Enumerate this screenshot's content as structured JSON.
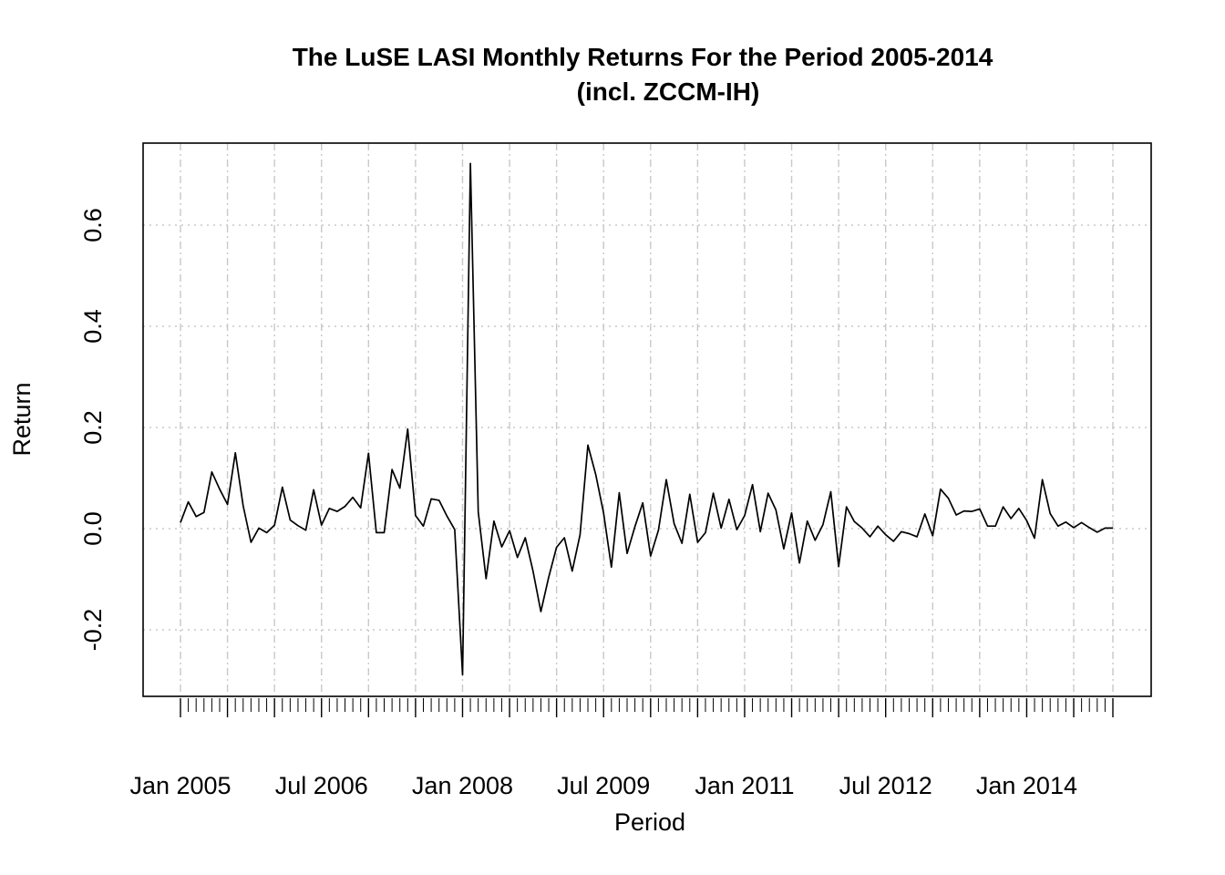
{
  "chart_data": {
    "type": "line",
    "title": "The LuSE LASI Monthly Returns For the Period 2005-2014",
    "subtitle": "(incl. ZCCM-IH)",
    "xlabel": "Period",
    "ylabel": "Return",
    "x_tick_labels": [
      "Jan 2005",
      "Jul 2006",
      "Jan 2008",
      "Jul 2009",
      "Jan 2011",
      "Jul 2012",
      "Jan 2014"
    ],
    "y_ticks": [
      -0.2,
      0.0,
      0.2,
      0.4,
      0.6
    ],
    "y_tick_labels": [
      "-0.2",
      "0.0",
      "0.2",
      "0.4",
      "0.6"
    ],
    "ylim": [
      -0.29,
      0.72
    ],
    "xlim": [
      "2005-01",
      "2014-12"
    ],
    "grid": true,
    "x_start": "2005-01",
    "frequency": "monthly",
    "series": [
      {
        "values": [
          0.012,
          0.053,
          0.024,
          0.032,
          0.112,
          0.078,
          0.048,
          0.15,
          0.045,
          -0.027,
          0.001,
          -0.008,
          0.007,
          0.082,
          0.017,
          0.006,
          -0.003,
          0.077,
          0.007,
          0.04,
          0.034,
          0.044,
          0.062,
          0.041,
          0.149,
          -0.008,
          -0.008,
          0.117,
          0.08,
          0.197,
          0.026,
          0.005,
          0.059,
          0.056,
          0.025,
          -0.002,
          -0.289,
          0.722,
          0.033,
          -0.099,
          0.015,
          -0.036,
          -0.004,
          -0.057,
          -0.018,
          -0.084,
          -0.164,
          -0.096,
          -0.037,
          -0.018,
          -0.084,
          -0.012,
          0.165,
          0.107,
          0.031,
          -0.076,
          0.071,
          -0.049,
          0.004,
          0.051,
          -0.054,
          -0.003,
          0.097,
          0.01,
          -0.029,
          0.068,
          -0.027,
          -0.008,
          0.07,
          0.001,
          0.058,
          -0.002,
          0.026,
          0.087,
          -0.006,
          0.07,
          0.037,
          -0.04,
          0.031,
          -0.068,
          0.015,
          -0.023,
          0.008,
          0.073,
          -0.075,
          0.043,
          0.014,
          0.001,
          -0.016,
          0.005,
          -0.012,
          -0.025,
          -0.006,
          -0.01,
          -0.016,
          0.029,
          -0.014,
          0.078,
          0.06,
          0.027,
          0.035,
          0.034,
          0.039,
          0.005,
          0.005,
          0.043,
          0.02,
          0.04,
          0.016,
          -0.019,
          0.097,
          0.03,
          0.005,
          0.013,
          0.002,
          0.012,
          0.002,
          -0.007,
          0.001,
          0.001
        ]
      }
    ]
  },
  "colors": {
    "line": "#000000",
    "grid": "#c8c8c8",
    "background": "#ffffff"
  }
}
